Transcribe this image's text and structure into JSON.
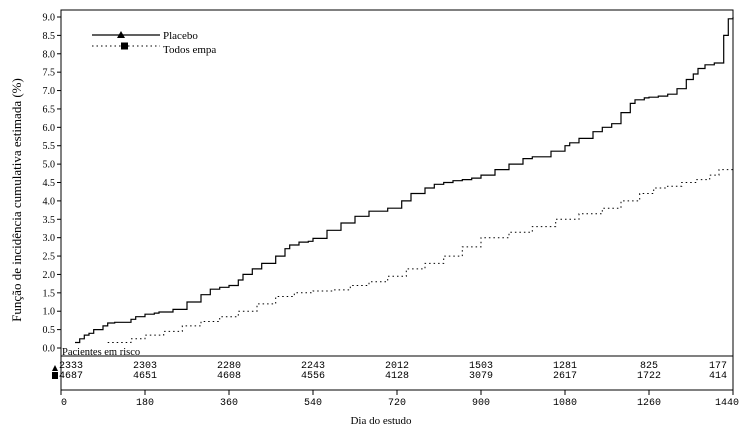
{
  "chart_data": {
    "type": "line",
    "title": "",
    "ylabel": "Função de incidência cumulativa estimada (%)",
    "xlabel": "Dia do estudo",
    "ylim": [
      0,
      9
    ],
    "xlim": [
      0,
      1440
    ],
    "yticks": [
      "0.0",
      "0.5",
      "1.0",
      "1.5",
      "2.0",
      "2.5",
      "3.0",
      "3.5",
      "4.0",
      "4.5",
      "5.0",
      "5.5",
      "6.0",
      "6.5",
      "7.0",
      "7.5",
      "8.0",
      "8.5",
      "9.0"
    ],
    "ytick_values": [
      0,
      0.5,
      1,
      1.5,
      2,
      2.5,
      3,
      3.5,
      4,
      4.5,
      5,
      5.5,
      6,
      6.5,
      7,
      7.5,
      8,
      8.5,
      9
    ],
    "xticks": [
      "0",
      "180",
      "360",
      "540",
      "720",
      "900",
      "1080",
      "1260",
      "1440"
    ],
    "xtick_values": [
      0,
      180,
      360,
      540,
      720,
      900,
      1080,
      1260,
      1440
    ],
    "grid": false,
    "legend_position": "top-left",
    "series": [
      {
        "name": "Placebo",
        "style": "solid",
        "marker": "triangle",
        "color": "#000000",
        "x": [
          30,
          40,
          50,
          60,
          70,
          90,
          100,
          115,
          125,
          150,
          160,
          180,
          200,
          210,
          240,
          270,
          300,
          320,
          340,
          360,
          380,
          390,
          410,
          430,
          460,
          480,
          490,
          510,
          530,
          540,
          570,
          600,
          630,
          660,
          700,
          730,
          750,
          780,
          800,
          820,
          840,
          860,
          880,
          900,
          930,
          960,
          990,
          1010,
          1050,
          1080,
          1090,
          1110,
          1140,
          1160,
          1180,
          1200,
          1220,
          1230,
          1250,
          1260,
          1280,
          1300,
          1320,
          1340,
          1355,
          1365,
          1380,
          1400,
          1420,
          1430,
          1440
        ],
        "values": [
          0.15,
          0.25,
          0.35,
          0.4,
          0.5,
          0.6,
          0.68,
          0.7,
          0.7,
          0.78,
          0.85,
          0.92,
          0.95,
          0.98,
          1.05,
          1.25,
          1.45,
          1.6,
          1.65,
          1.7,
          1.85,
          2.0,
          2.15,
          2.3,
          2.5,
          2.7,
          2.8,
          2.88,
          2.9,
          2.98,
          3.2,
          3.4,
          3.58,
          3.72,
          3.8,
          4.0,
          4.2,
          4.35,
          4.45,
          4.5,
          4.55,
          4.58,
          4.62,
          4.7,
          4.85,
          5.0,
          5.15,
          5.2,
          5.35,
          5.5,
          5.58,
          5.7,
          5.88,
          6.0,
          6.1,
          6.4,
          6.65,
          6.75,
          6.8,
          6.82,
          6.85,
          6.9,
          7.05,
          7.3,
          7.45,
          7.6,
          7.7,
          7.75,
          8.5,
          8.95,
          9.0
        ]
      },
      {
        "name": "Todos empa",
        "style": "dotted",
        "marker": "square",
        "color": "#000000",
        "x": [
          100,
          150,
          180,
          220,
          260,
          300,
          340,
          380,
          420,
          460,
          500,
          540,
          580,
          620,
          660,
          700,
          740,
          780,
          820,
          860,
          900,
          960,
          1010,
          1060,
          1110,
          1160,
          1200,
          1240,
          1270,
          1300,
          1330,
          1360,
          1390,
          1410,
          1440
        ],
        "values": [
          0.15,
          0.25,
          0.35,
          0.45,
          0.6,
          0.72,
          0.85,
          1.0,
          1.2,
          1.4,
          1.5,
          1.55,
          1.58,
          1.7,
          1.8,
          1.95,
          2.15,
          2.3,
          2.5,
          2.75,
          3.0,
          3.15,
          3.3,
          3.5,
          3.65,
          3.8,
          4.0,
          4.2,
          4.35,
          4.4,
          4.5,
          4.58,
          4.7,
          4.85,
          4.92
        ]
      }
    ],
    "risk_table": {
      "header": "Pacientes em risco",
      "rows": [
        {
          "series": "Placebo",
          "marker": "triangle",
          "values": [
            "2333",
            "2303",
            "2280",
            "2243",
            "2012",
            "1503",
            "1281",
            "825",
            "177"
          ]
        },
        {
          "series": "Todos empa",
          "marker": "square",
          "values": [
            "4687",
            "4651",
            "4608",
            "4556",
            "4128",
            "3079",
            "2617",
            "1722",
            "414"
          ]
        }
      ]
    }
  }
}
